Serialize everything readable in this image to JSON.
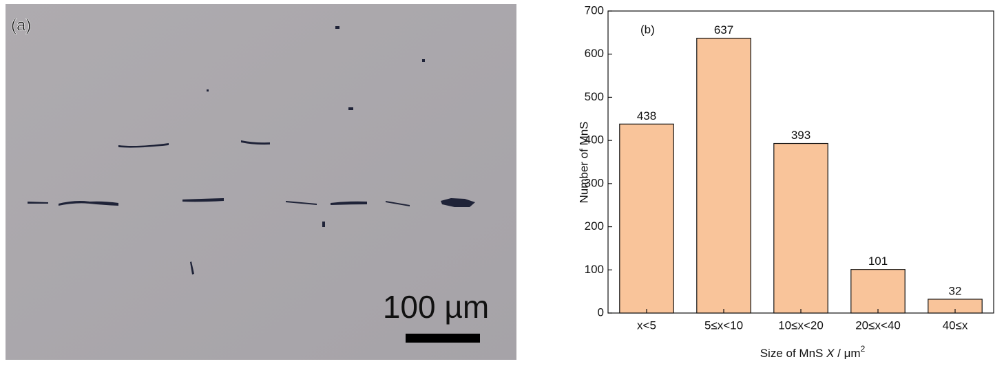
{
  "panel_a": {
    "label": "(a)",
    "scale_bar": "100 µm"
  },
  "chart_data": {
    "type": "bar",
    "panel_label": "(b)",
    "ylabel": "Number of MnS",
    "xlabel": {
      "prefix": "Size of MnS ",
      "variable": "X",
      "unit": " / μm",
      "exponent": "2"
    },
    "categories": [
      "x<5",
      "5≤x<10",
      "10≤x<20",
      "20≤x<40",
      "40≤x"
    ],
    "values": [
      438,
      637,
      393,
      101,
      32
    ],
    "color": "#f9c49a",
    "ylim": [
      0,
      700
    ],
    "yticks": [
      0,
      100,
      200,
      300,
      400,
      500,
      600,
      700
    ]
  }
}
